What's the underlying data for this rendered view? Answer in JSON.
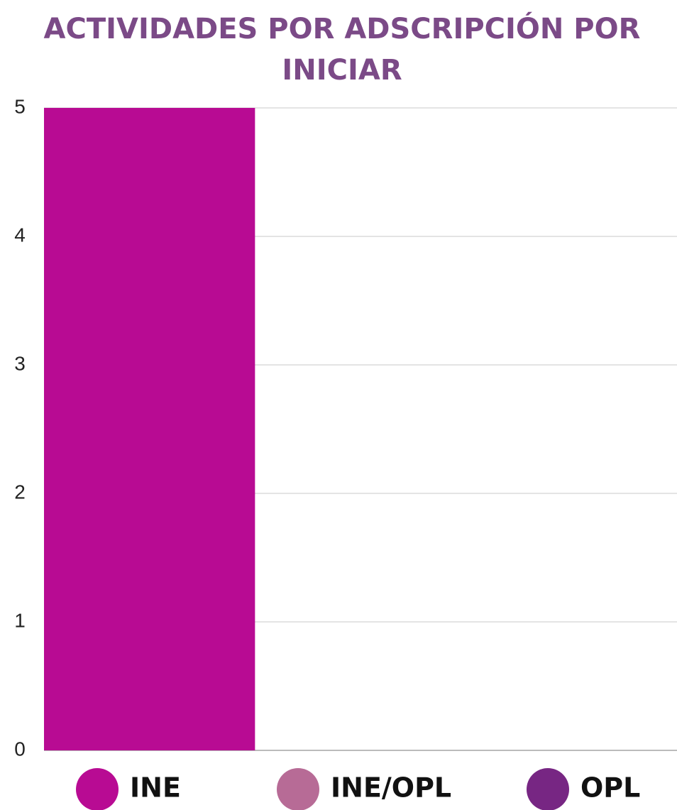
{
  "chart_data": {
    "type": "bar",
    "title": "ACTIVIDADES POR ADSCRIPCIÓN POR INICIAR",
    "categories": [
      null
    ],
    "series": [
      {
        "name": "INE",
        "color": "#b80b93",
        "values": [
          5
        ]
      },
      {
        "name": "INE/OPL",
        "color": "#b76b96",
        "values": [
          0
        ]
      },
      {
        "name": "OPL",
        "color": "#772683",
        "values": [
          0
        ]
      }
    ],
    "ylim": [
      0,
      5
    ],
    "yticks": [
      0,
      1,
      2,
      3,
      4,
      5
    ],
    "grid": true,
    "legend": "bottom"
  }
}
